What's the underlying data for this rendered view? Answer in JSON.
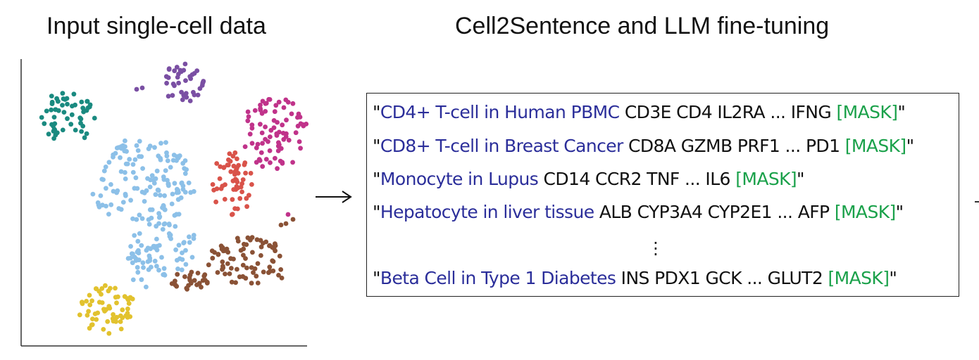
{
  "left_title": "Input single-cell data",
  "right_title": "Cell2Sentence and LLM fine-tuning",
  "colors": {
    "label": "#2b2e9a",
    "mask": "#1aa14a",
    "text": "#111111"
  },
  "clusters": [
    {
      "name": "teal-cluster",
      "color": "#1a8a80"
    },
    {
      "name": "purple-cluster",
      "color": "#7a4fa3"
    },
    {
      "name": "magenta-cluster",
      "color": "#c0338a"
    },
    {
      "name": "light-blue-cluster",
      "color": "#8cc0e8"
    },
    {
      "name": "red-cluster",
      "color": "#d9534a"
    },
    {
      "name": "brown-cluster",
      "color": "#8a5236"
    },
    {
      "name": "yellow-cluster",
      "color": "#e2c22e"
    }
  ],
  "sentences": [
    {
      "open": "\"",
      "label": "CD4+ T-cell in Human PBMC",
      "genes": " CD3E CD4 IL2RA ... IFNG ",
      "mask": "[MASK]",
      "close": "\""
    },
    {
      "open": "\"",
      "label": "CD8+ T-cell in Breast Cancer",
      "genes": " CD8A GZMB PRF1 ... PD1 ",
      "mask": "[MASK]",
      "close": "\""
    },
    {
      "open": "\"",
      "label": "Monocyte in Lupus",
      "genes": " CD14 CCR2 TNF ...  IL6 ",
      "mask": "[MASK]",
      "close": "\""
    },
    {
      "open": "\"",
      "label": "Hepatocyte in liver tissue",
      "genes": " ALB CYP3A4 CYP2E1 ... AFP ",
      "mask": "[MASK]",
      "close": "\""
    },
    {
      "open": "\"",
      "label": "Beta Cell in Type 1 Diabetes",
      "genes": " INS PDX1 GCK ... GLUT2 ",
      "mask": "[MASK]",
      "close": "\""
    }
  ],
  "ellipsis": "⋮"
}
